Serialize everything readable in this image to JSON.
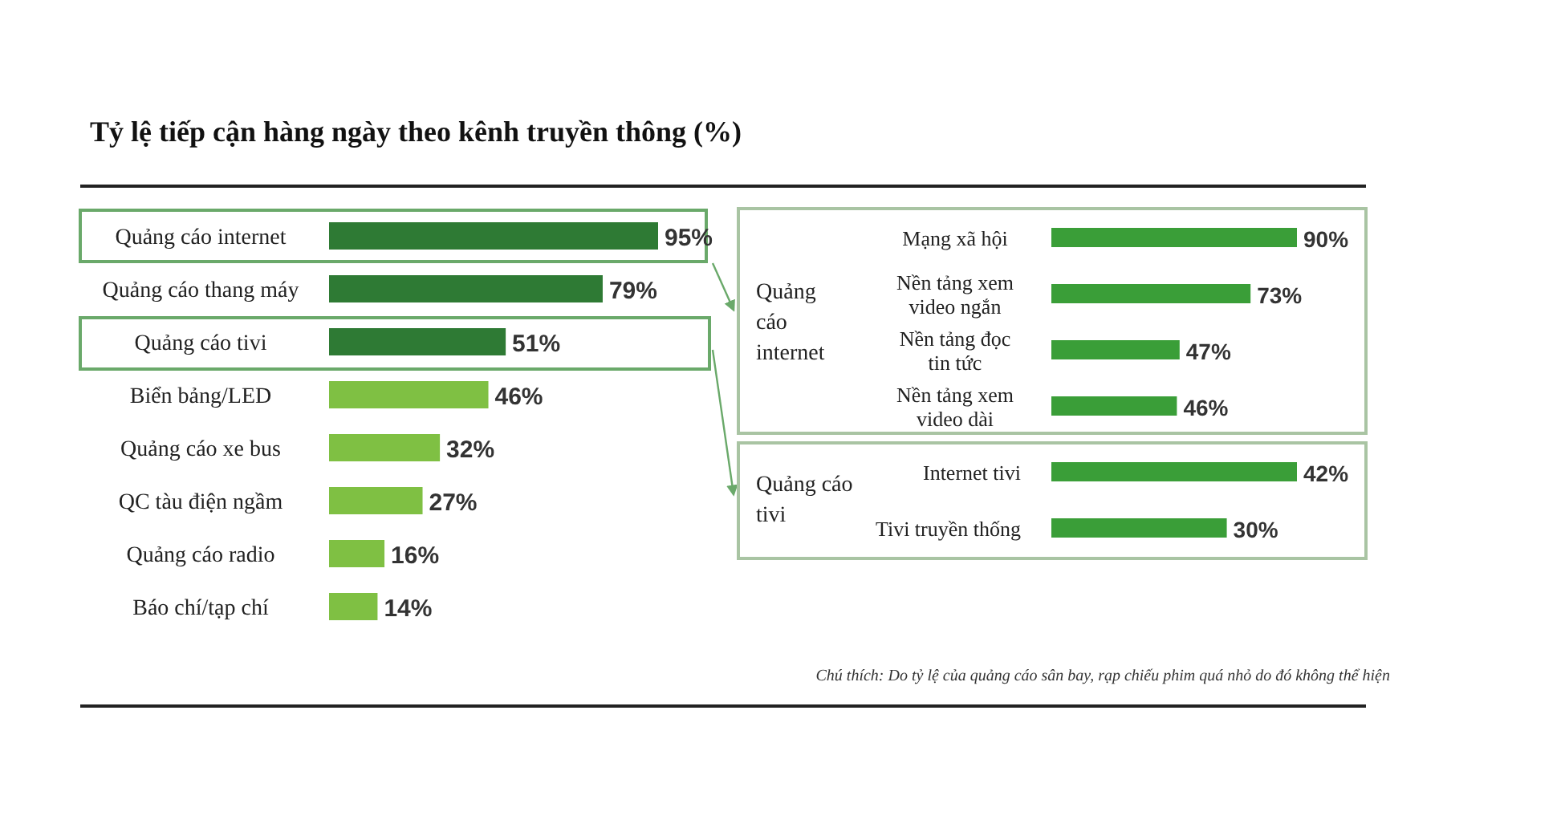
{
  "chart_data": [
    {
      "type": "bar",
      "orientation": "horizontal",
      "title": "Tỷ lệ tiếp cận hàng ngày theo kênh truyền thông (%)",
      "categories": [
        "Quảng cáo internet",
        "Quảng cáo thang máy",
        "Quảng cáo tivi",
        "Biển bảng/LED",
        "Quảng cáo xe bus",
        "QC tàu điện ngầm",
        "Quảng cáo radio",
        "Báo chí/tạp chí"
      ],
      "values": [
        95,
        79,
        51,
        46,
        32,
        27,
        16,
        14
      ],
      "value_labels": [
        "95%",
        "79%",
        "51%",
        "46%",
        "32%",
        "27%",
        "16%",
        "14%"
      ],
      "colors": [
        "#2e7a34",
        "#2e7a34",
        "#2e7a34",
        "#7fc043",
        "#7fc043",
        "#7fc043",
        "#7fc043",
        "#7fc043"
      ],
      "annotations": [
        "Chú thích: Do tỷ lệ của quảng cáo sân bay, rạp chiếu phim quá nhỏ do đó không thể hiện"
      ]
    },
    {
      "type": "bar",
      "orientation": "horizontal",
      "title": "Quảng cáo internet",
      "categories": [
        "Mạng xã hội",
        "Nền tảng xem video ngắn",
        "Nền tảng đọc tin tức",
        "Nền tảng xem video dài"
      ],
      "values": [
        90,
        73,
        47,
        46
      ],
      "value_labels": [
        "90%",
        "73%",
        "47%",
        "46%"
      ],
      "color": "#3a9e38"
    },
    {
      "type": "bar",
      "orientation": "horizontal",
      "title": "Quảng cáo tivi",
      "categories": [
        "Internet tivi",
        "Tivi truyền thống"
      ],
      "values": [
        42,
        30
      ],
      "value_labels": [
        "42%",
        "30%"
      ],
      "color": "#3a9e38"
    }
  ]
}
